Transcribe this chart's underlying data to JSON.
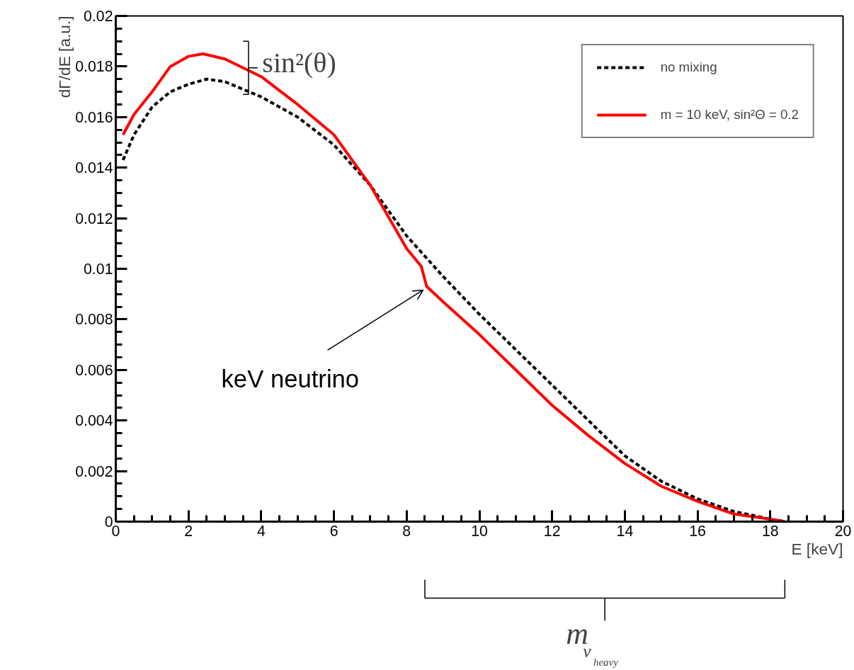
{
  "chart_data": {
    "type": "line",
    "xlabel": "E [keV]",
    "ylabel": "dΓ/dE [a.u.]",
    "xlim": [
      0,
      20
    ],
    "xticks": [
      0,
      2,
      4,
      6,
      8,
      10,
      12,
      14,
      16,
      18,
      20
    ],
    "ylim": [
      0,
      0.02
    ],
    "yticks": [
      0,
      0.002,
      0.004,
      0.006,
      0.008,
      0.01,
      0.012,
      0.014,
      0.016,
      0.018,
      0.02
    ],
    "grid": false,
    "legend": "top right",
    "series": [
      {
        "name": "no mixing",
        "color": "#000000",
        "line_style": "dashed",
        "x": [
          0.2,
          0.5,
          1,
          1.5,
          2,
          2.5,
          3,
          4,
          5,
          6,
          7,
          8,
          9,
          10,
          11,
          12,
          13,
          14,
          15,
          16,
          17,
          18,
          18.4
        ],
        "values": [
          0.0143,
          0.0153,
          0.0164,
          0.017,
          0.0173,
          0.0175,
          0.0174,
          0.0168,
          0.016,
          0.0149,
          0.0133,
          0.0113,
          0.0097,
          0.0082,
          0.0068,
          0.0054,
          0.004,
          0.0026,
          0.0016,
          0.0009,
          0.0004,
          0.0001,
          0
        ]
      },
      {
        "name": "m = 10 keV, sin²Θ = 0.2",
        "color": "#ff0000",
        "line_style": "solid",
        "x": [
          0.2,
          0.5,
          1,
          1.5,
          2,
          2.4,
          3,
          4,
          5,
          6,
          7,
          8,
          8.4,
          8.55,
          9,
          10,
          11,
          12,
          13,
          14,
          15,
          16,
          17,
          18,
          18.4
        ],
        "values": [
          0.0153,
          0.0161,
          0.017,
          0.018,
          0.0184,
          0.0185,
          0.0183,
          0.0176,
          0.0165,
          0.0153,
          0.0133,
          0.0108,
          0.0101,
          0.0093,
          0.0087,
          0.0074,
          0.006,
          0.0046,
          0.0034,
          0.0023,
          0.0014,
          0.0008,
          0.0003,
          0.0001,
          0
        ]
      }
    ],
    "annotations": [
      {
        "text": "sin²(θ)",
        "x": 3.6,
        "y": 0.0179
      },
      {
        "text": "keV neutrino",
        "x": 8.55,
        "y": 0.0093
      },
      "m$_{ν}$$_{heavy}$"
    ]
  }
}
